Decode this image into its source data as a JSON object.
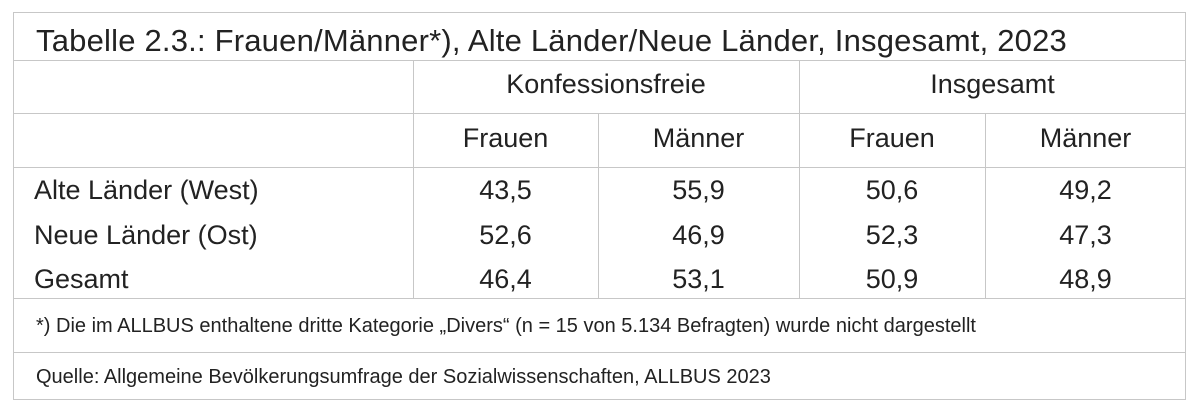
{
  "table": {
    "title": "Tabelle 2.3.: Frauen/Männer*), Alte Länder/Neue Länder, Insgesamt, 2023",
    "groups": [
      "Konfessionsfreie",
      "Insgesamt"
    ],
    "subheaders": [
      "Frauen",
      "Männer",
      "Frauen",
      "Männer"
    ],
    "rows": [
      {
        "label": "Alte Länder (West)",
        "values": [
          "43,5",
          "55,9",
          "50,6",
          "49,2"
        ]
      },
      {
        "label": "Neue Länder (Ost)",
        "values": [
          "52,6",
          "46,9",
          "52,3",
          "47,3"
        ]
      },
      {
        "label": "Gesamt",
        "values": [
          "46,4",
          "53,1",
          "50,9",
          "48,9"
        ]
      }
    ],
    "footnote": "*) Die im ALLBUS enthaltene dritte Kategorie „Divers“ (n = 15 von 5.134 Befragten) wurde nicht dargestellt",
    "source": "Quelle: Allgemeine Bevölkerungsumfrage der Sozialwissenschaften, ALLBUS 2023"
  }
}
